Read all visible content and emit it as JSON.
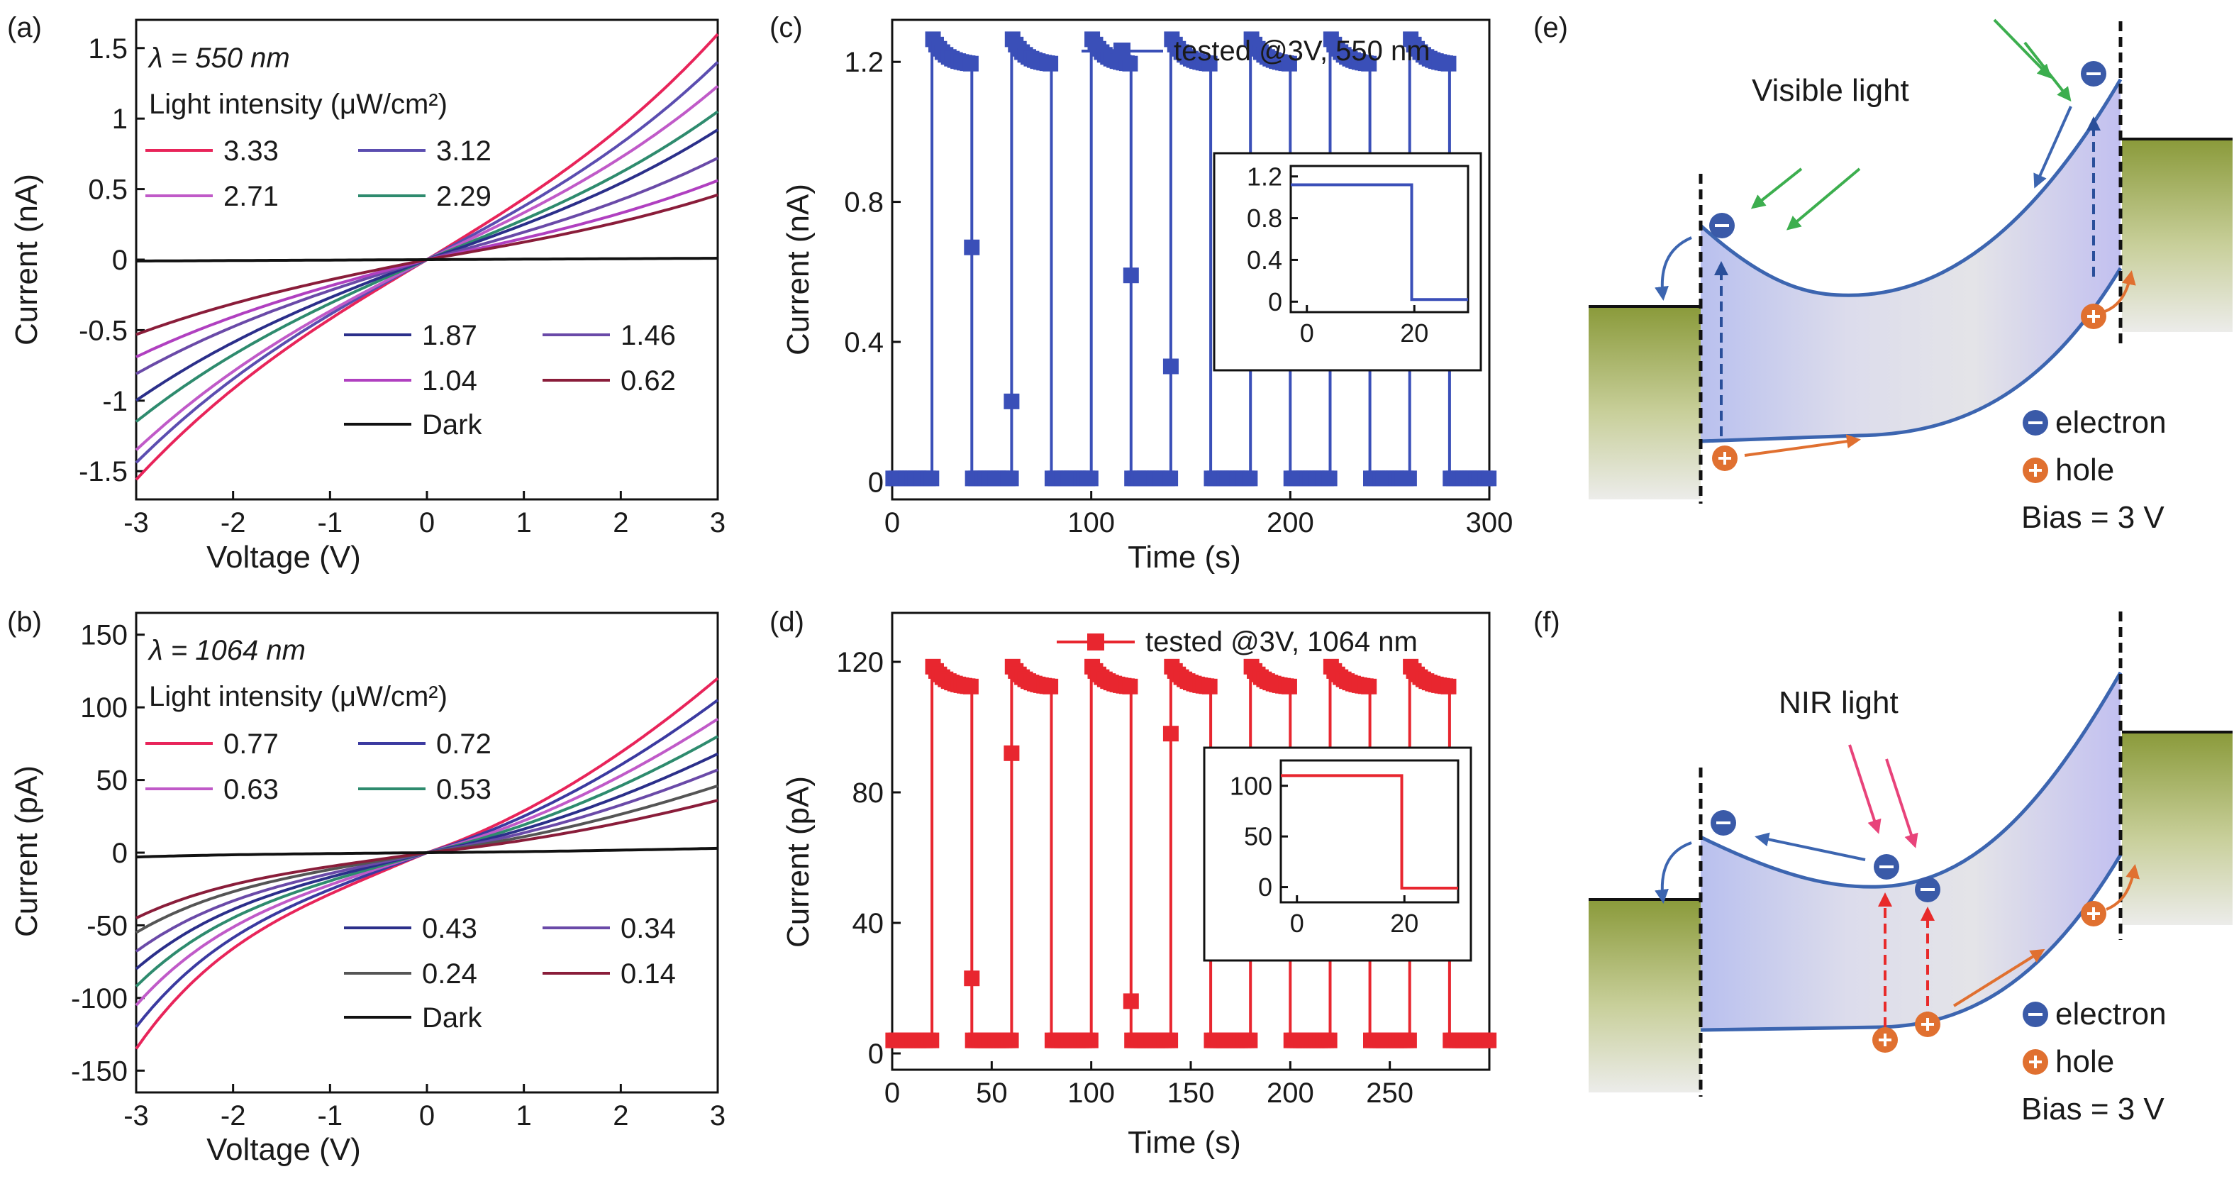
{
  "chart_data": [
    {
      "panel": "(a)",
      "type": "line",
      "xlabel": "Voltage (V)",
      "ylabel": "Current (nA)",
      "xlim": [
        -3,
        3
      ],
      "ylim": [
        -1.7,
        1.7
      ],
      "xticks": [
        -3,
        -2,
        -1,
        0,
        1,
        2,
        3
      ],
      "xtick_labels": [
        "-3",
        "-2",
        "-1",
        "0",
        "1",
        "2",
        "3"
      ],
      "yticks": [
        -1.5,
        -1,
        -0.5,
        0,
        0.5,
        1,
        1.5
      ],
      "ytick_labels": [
        "-1.5",
        "-1",
        "-0.5",
        "0",
        "0.5",
        "1",
        "1.5"
      ],
      "wavelength": "λ = 550 nm",
      "legend_title": "Light intensity (μW/cm²)",
      "series": [
        {
          "name": "3.33",
          "color": "#e8245a",
          "slope_pos": 0.533,
          "slope_neg": 0.52,
          "curve": 0.03
        },
        {
          "name": "3.12",
          "color": "#5b4db0",
          "slope_pos": 0.467,
          "slope_neg": 0.48,
          "curve": 0.03
        },
        {
          "name": "2.71",
          "color": "#c05ac8",
          "slope_pos": 0.41,
          "slope_neg": 0.45,
          "curve": 0.03
        },
        {
          "name": "2.29",
          "color": "#2e8b6e",
          "slope_pos": 0.35,
          "slope_neg": 0.383,
          "curve": 0.03
        },
        {
          "name": "1.87",
          "color": "#2b2f8a",
          "slope_pos": 0.307,
          "slope_neg": 0.333,
          "curve": 0.03
        },
        {
          "name": "1.46",
          "color": "#6a4aa8",
          "slope_pos": 0.24,
          "slope_neg": 0.27,
          "curve": 0.03
        },
        {
          "name": "1.04",
          "color": "#b040c0",
          "slope_pos": 0.187,
          "slope_neg": 0.23,
          "curve": 0.03
        },
        {
          "name": "0.62",
          "color": "#8a1d3a",
          "slope_pos": 0.153,
          "slope_neg": 0.177,
          "curve": 0.03
        },
        {
          "name": "Dark",
          "color": "#111111",
          "slope_pos": 0.0033,
          "slope_neg": 0.0033,
          "curve": 0
        }
      ]
    },
    {
      "panel": "(b)",
      "type": "line",
      "xlabel": "Voltage (V)",
      "ylabel": "Current (pA)",
      "xlim": [
        -3,
        3
      ],
      "ylim": [
        -165,
        165
      ],
      "xticks": [
        -3,
        -2,
        -1,
        0,
        1,
        2,
        3
      ],
      "xtick_labels": [
        "-3",
        "-2",
        "-1",
        "0",
        "1",
        "2",
        "3"
      ],
      "yticks": [
        -150,
        -100,
        -50,
        0,
        50,
        100,
        150
      ],
      "ytick_labels": [
        "-150",
        "-100",
        "-50",
        "0",
        "50",
        "100",
        "150"
      ],
      "wavelength": "λ = 1064 nm",
      "legend_title": "Light intensity (μW/cm²)",
      "series": [
        {
          "name": "0.77",
          "color": "#e8245a",
          "pos_end": 120,
          "neg_end": -135
        },
        {
          "name": "0.72",
          "color": "#3b3aa0",
          "pos_end": 105,
          "neg_end": -120
        },
        {
          "name": "0.63",
          "color": "#c05ac8",
          "pos_end": 92,
          "neg_end": -105
        },
        {
          "name": "0.53",
          "color": "#2e8b6e",
          "pos_end": 80,
          "neg_end": -92
        },
        {
          "name": "0.43",
          "color": "#2b2f8a",
          "pos_end": 68,
          "neg_end": -80
        },
        {
          "name": "0.34",
          "color": "#6a4aa8",
          "pos_end": 57,
          "neg_end": -68
        },
        {
          "name": "0.24",
          "color": "#555555",
          "pos_end": 46,
          "neg_end": -55
        },
        {
          "name": "0.14",
          "color": "#8a1d3a",
          "pos_end": 36,
          "neg_end": -45
        },
        {
          "name": "Dark",
          "color": "#111111",
          "pos_end": 3,
          "neg_end": -3
        }
      ]
    },
    {
      "panel": "(c)",
      "type": "line",
      "xlabel": "Time (s)",
      "ylabel": "Current (nA)",
      "xlim": [
        0,
        300
      ],
      "ylim": [
        -0.05,
        1.32
      ],
      "xticks": [
        0,
        100,
        200,
        300
      ],
      "xtick_labels": [
        "0",
        "100",
        "200",
        "300"
      ],
      "yticks": [
        0,
        0.4,
        0.8,
        1.2
      ],
      "ytick_labels": [
        "0",
        "0.4",
        "0.8",
        "1.2"
      ],
      "legend": "tested @3V, 550 nm",
      "color": "#3a4fb8",
      "on_start": [
        20,
        60,
        100,
        140,
        180,
        220,
        260
      ],
      "on_duration": 20,
      "on_peak": 1.27,
      "on_end": 1.19,
      "off_level": 0.01,
      "transition_points": [
        [
          40,
          0.67
        ],
        [
          60,
          0.23
        ],
        [
          120,
          0.59
        ],
        [
          140,
          0.33
        ]
      ],
      "inset": {
        "xlim": [
          -3,
          30
        ],
        "ylim": [
          -0.1,
          1.3
        ],
        "xticks": [
          0,
          20
        ],
        "xtick_labels": [
          "0",
          "20"
        ],
        "yticks": [
          0,
          0.4,
          0.8,
          1.2
        ],
        "ytick_labels": [
          "0",
          "0.4",
          "0.8",
          "1.2"
        ],
        "steps": [
          [
            -3,
            1.12
          ],
          [
            19.5,
            1.12
          ],
          [
            19.5,
            0.02
          ],
          [
            30,
            0.02
          ]
        ]
      }
    },
    {
      "panel": "(d)",
      "type": "line",
      "xlabel": "Time (s)",
      "ylabel": "Current (pA)",
      "xlim": [
        0,
        300
      ],
      "ylim": [
        -5,
        135
      ],
      "xticks": [
        0,
        50,
        100,
        150,
        200,
        250
      ],
      "xtick_labels": [
        "0",
        "50",
        "100",
        "150",
        "200",
        "250"
      ],
      "yticks": [
        0,
        40,
        80,
        120
      ],
      "ytick_labels": [
        "0",
        "40",
        "80",
        "120"
      ],
      "legend": "tested @3V, 1064 nm",
      "color": "#e8262f",
      "on_start": [
        20,
        60,
        100,
        140,
        180,
        220,
        260
      ],
      "on_duration": 20,
      "on_peak": 119,
      "on_end": 112,
      "off_level": 4,
      "transition_points": [
        [
          40,
          23
        ],
        [
          60,
          92
        ],
        [
          120,
          16
        ],
        [
          140,
          98
        ]
      ],
      "inset": {
        "xlim": [
          -3,
          30
        ],
        "ylim": [
          -15,
          125
        ],
        "xticks": [
          0,
          20
        ],
        "xtick_labels": [
          "0",
          "20"
        ],
        "yticks": [
          0,
          50,
          100
        ],
        "ytick_labels": [
          "0",
          "50",
          "100"
        ],
        "steps": [
          [
            -3,
            110
          ],
          [
            19.5,
            110
          ],
          [
            19.5,
            -1
          ],
          [
            30,
            -1
          ]
        ]
      }
    }
  ],
  "diagram_e": {
    "panel": "(e)",
    "light_label": "Visible light",
    "arrow_color": "#3cae4e",
    "legend_electron": "electron",
    "legend_hole": "hole",
    "bias": "Bias = 3 V"
  },
  "diagram_f": {
    "panel": "(f)",
    "light_label": "NIR light",
    "arrow_color": "#e8437a",
    "legend_electron": "electron",
    "legend_hole": "hole",
    "bias": "Bias = 3 V"
  },
  "colors": {
    "band_fill": "#c9c6ef",
    "band_edge": "#3c65b0",
    "electron": "#3a5aa8",
    "hole": "#e07030",
    "contact_top": "#8a9a3a",
    "contact_bottom": "#e8e8e4"
  }
}
